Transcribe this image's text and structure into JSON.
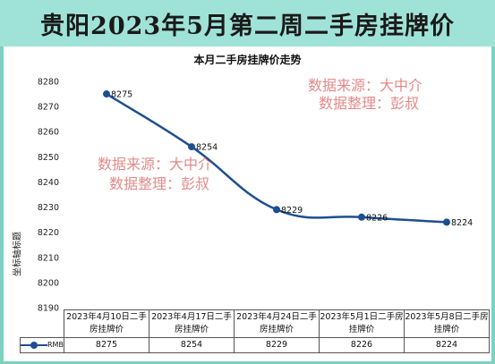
{
  "banner": {
    "title": "贵阳2023年5月第二周二手房挂牌价"
  },
  "watermarks": [
    "数据来源：大中介",
    "数据整理：彭叔"
  ],
  "colors": {
    "series": "#1f4e8f",
    "background": "#7fd0c3",
    "banner": "#9fe3d8",
    "watermark": "#d85a5a"
  },
  "chart_data": {
    "type": "line",
    "title": "本月二手房挂牌价走势",
    "ylabel": "坐标轴标题",
    "xlabel": "",
    "categories": [
      "2023年4月10日二手房挂牌价",
      "2023年4月17日二手房挂牌价",
      "2023年4月24日二手房挂牌价",
      "2023年5月1日二手房挂牌价",
      "2023年5月8日二手房挂牌价"
    ],
    "series": [
      {
        "name": "RMB",
        "values": [
          8275,
          8254,
          8229,
          8226,
          8224
        ]
      }
    ],
    "ylim": [
      8190,
      8280
    ],
    "yticks": [
      8190,
      8200,
      8210,
      8220,
      8230,
      8240,
      8250,
      8260,
      8270,
      8280
    ],
    "grid": false,
    "data_table": true
  }
}
